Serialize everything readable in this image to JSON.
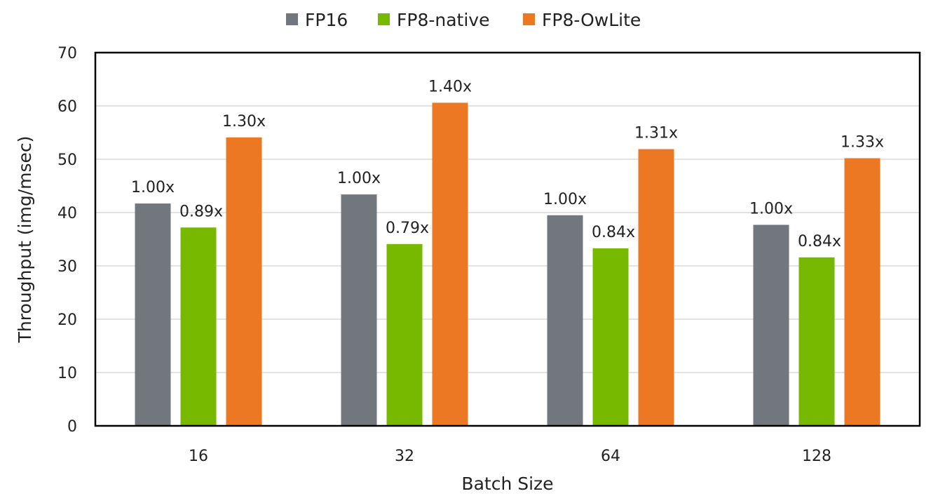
{
  "chart_data": {
    "type": "bar",
    "title": "",
    "xlabel": "Batch Size",
    "ylabel": "Throughput (img/msec)",
    "ylim": [
      0,
      70
    ],
    "yticks": [
      "0",
      "10",
      "20",
      "30",
      "40",
      "50",
      "60",
      "70"
    ],
    "grid": true,
    "legend_position": "top-center",
    "categories": [
      "16",
      "32",
      "64",
      "128"
    ],
    "series": [
      {
        "name": "FP16",
        "color": "#72767d",
        "values": [
          41.7,
          43.4,
          39.5,
          37.7
        ],
        "labels": [
          "1.00x",
          "1.00x",
          "1.00x",
          "1.00x"
        ]
      },
      {
        "name": "FP8-native",
        "color": "#76b900",
        "values": [
          37.2,
          34.1,
          33.3,
          31.6
        ],
        "labels": [
          "0.89x",
          "0.79x",
          "0.84x",
          "0.84x"
        ]
      },
      {
        "name": "FP8-OwLite",
        "color": "#ed7824",
        "values": [
          54.1,
          60.6,
          51.9,
          50.2
        ],
        "labels": [
          "1.30x",
          "1.40x",
          "1.31x",
          "1.33x"
        ]
      }
    ]
  }
}
